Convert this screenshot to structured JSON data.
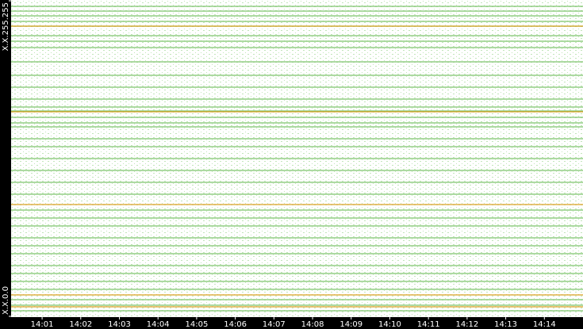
{
  "chart_data": {
    "type": "hlines",
    "xlim": [
      -0.09,
      15.0
    ],
    "xticks": [
      {
        "value": 1,
        "label": "14:01"
      },
      {
        "value": 2,
        "label": "14:02"
      },
      {
        "value": 3,
        "label": "14:03"
      },
      {
        "value": 4,
        "label": "14:04"
      },
      {
        "value": 5,
        "label": "14:05"
      },
      {
        "value": 6,
        "label": "14:06"
      },
      {
        "value": 7,
        "label": "14:07"
      },
      {
        "value": 8,
        "label": "14:08"
      },
      {
        "value": 9,
        "label": "14:09"
      },
      {
        "value": 10,
        "label": "14:10"
      },
      {
        "value": 11,
        "label": "14:11"
      },
      {
        "value": 12,
        "label": "14:12"
      },
      {
        "value": 13,
        "label": "14:13"
      },
      {
        "value": 14,
        "label": "14:14"
      }
    ],
    "ylim": [
      0,
      65535
    ],
    "yticks": [
      {
        "value": 65535,
        "label": "X.X.255.255"
      },
      {
        "value": 0,
        "label": "X.X.0.0"
      }
    ],
    "series": [
      {
        "color": "#7cc36a",
        "values": [
          64225,
          63242,
          62259,
          61112,
          60129,
          58163,
          57016,
          55706,
          52756,
          49971,
          47514,
          45056,
          43418,
          42598,
          41288,
          40141,
          39322,
          36864,
          35226,
          32768,
          30310,
          27853,
          25395,
          22118,
          20480,
          18842,
          16384,
          14746,
          13107,
          10650,
          9011,
          7373,
          5734,
          3604,
          2458,
          1311
        ]
      },
      {
        "color": "#d9a020",
        "values": [
          60129,
          42435,
          23265,
          4588,
          2130
        ]
      }
    ]
  }
}
